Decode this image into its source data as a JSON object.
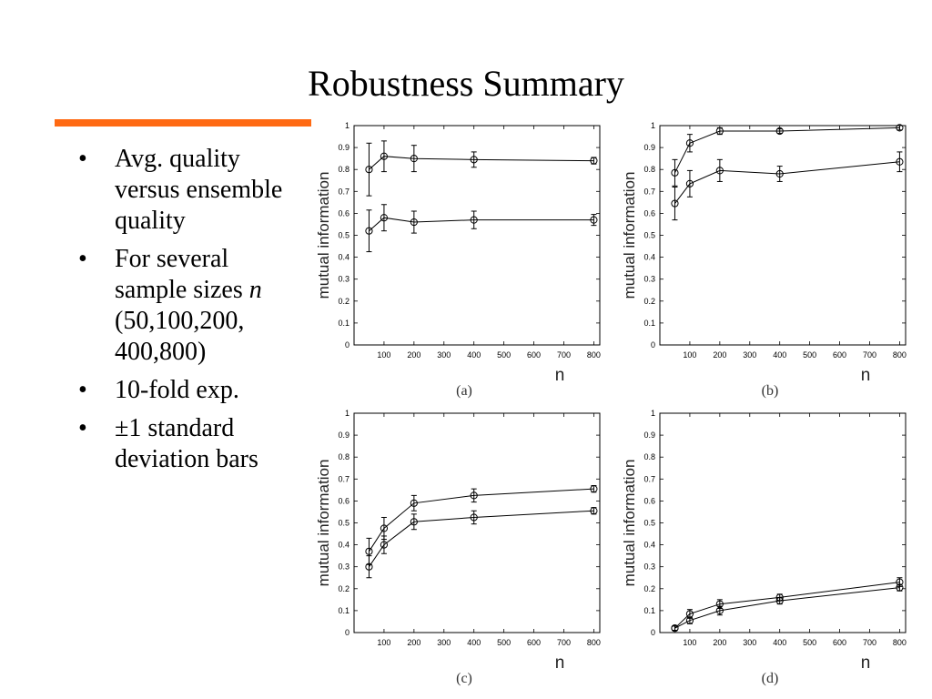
{
  "slide": {
    "title": "Robustness Summary",
    "accent_color": "#ff6a13",
    "bullets": [
      {
        "symbol": "•",
        "text": "Avg. quality versus ensemble quality"
      },
      {
        "symbol": "•",
        "prefix": "For several sample sizes ",
        "emphasis": "n",
        "suffix": " (50,100,200, 400,800)"
      },
      {
        "symbol": "•",
        "text": "10-fold exp."
      },
      {
        "symbol": "•",
        "text": " ±1 standard deviation bars"
      }
    ]
  },
  "chart_data": [
    {
      "type": "line",
      "caption": "(a)",
      "xlabel": "n",
      "ylabel": "mutual information",
      "xlim": [
        0,
        820
      ],
      "ylim": [
        0,
        1
      ],
      "xticks": [
        100,
        200,
        300,
        400,
        500,
        600,
        700,
        800
      ],
      "yticks": [
        0,
        0.1,
        0.2,
        0.3,
        0.4,
        0.5,
        0.6,
        0.7,
        0.8,
        0.9,
        1
      ],
      "grid": false,
      "marker": "circle",
      "error_bars": true,
      "x": [
        50,
        100,
        200,
        400,
        800
      ],
      "series": [
        {
          "values": [
            0.8,
            0.86,
            0.85,
            0.845,
            0.84
          ],
          "errors": [
            0.12,
            0.07,
            0.06,
            0.035,
            0.015
          ]
        },
        {
          "values": [
            0.52,
            0.58,
            0.56,
            0.57,
            0.57
          ],
          "errors": [
            0.095,
            0.06,
            0.05,
            0.04,
            0.025
          ]
        }
      ]
    },
    {
      "type": "line",
      "caption": "(b)",
      "xlabel": "n",
      "ylabel": "mutual information",
      "xlim": [
        0,
        820
      ],
      "ylim": [
        0,
        1
      ],
      "xticks": [
        100,
        200,
        300,
        400,
        500,
        600,
        700,
        800
      ],
      "yticks": [
        0,
        0.1,
        0.2,
        0.3,
        0.4,
        0.5,
        0.6,
        0.7,
        0.8,
        0.9,
        1
      ],
      "grid": false,
      "marker": "circle",
      "error_bars": true,
      "x": [
        50,
        100,
        200,
        400,
        800
      ],
      "series": [
        {
          "values": [
            0.785,
            0.92,
            0.975,
            0.975,
            0.99
          ],
          "errors": [
            0.06,
            0.04,
            0.015,
            0.01,
            0.01
          ]
        },
        {
          "values": [
            0.645,
            0.735,
            0.795,
            0.78,
            0.835
          ],
          "errors": [
            0.075,
            0.06,
            0.05,
            0.035,
            0.045
          ]
        }
      ]
    },
    {
      "type": "line",
      "caption": "(c)",
      "xlabel": "n",
      "ylabel": "mutual information",
      "xlim": [
        0,
        820
      ],
      "ylim": [
        0,
        1
      ],
      "xticks": [
        100,
        200,
        300,
        400,
        500,
        600,
        700,
        800
      ],
      "yticks": [
        0,
        0.1,
        0.2,
        0.3,
        0.4,
        0.5,
        0.6,
        0.7,
        0.8,
        0.9,
        1
      ],
      "grid": false,
      "marker": "circle",
      "error_bars": true,
      "x": [
        50,
        100,
        200,
        400,
        800
      ],
      "series": [
        {
          "values": [
            0.37,
            0.475,
            0.59,
            0.625,
            0.655
          ],
          "errors": [
            0.06,
            0.05,
            0.035,
            0.03,
            0.015
          ]
        },
        {
          "values": [
            0.3,
            0.4,
            0.505,
            0.525,
            0.555
          ],
          "errors": [
            0.05,
            0.04,
            0.035,
            0.03,
            0.015
          ]
        }
      ]
    },
    {
      "type": "line",
      "caption": "(d)",
      "xlabel": "n",
      "ylabel": "mutual information",
      "xlim": [
        0,
        820
      ],
      "ylim": [
        0,
        1
      ],
      "xticks": [
        100,
        200,
        300,
        400,
        500,
        600,
        700,
        800
      ],
      "yticks": [
        0,
        0.1,
        0.2,
        0.3,
        0.4,
        0.5,
        0.6,
        0.7,
        0.8,
        0.9,
        1
      ],
      "grid": false,
      "marker": "circle",
      "error_bars": true,
      "x": [
        50,
        100,
        200,
        400,
        800
      ],
      "series": [
        {
          "values": [
            0.02,
            0.085,
            0.13,
            0.16,
            0.23
          ],
          "errors": [
            0.01,
            0.02,
            0.02,
            0.015,
            0.02
          ]
        },
        {
          "values": [
            0.02,
            0.055,
            0.1,
            0.145,
            0.205
          ],
          "errors": [
            0.01,
            0.015,
            0.02,
            0.015,
            0.015
          ]
        }
      ]
    }
  ]
}
